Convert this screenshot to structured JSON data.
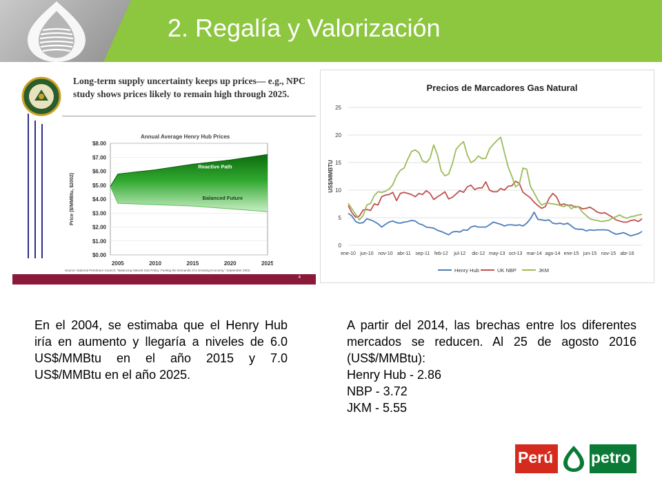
{
  "slide": {
    "title": "2. Regalía y Valorización"
  },
  "left_figure": {
    "headline": "Long-term supply uncertainty keeps up prices— e.g., NPC study shows prices likely to remain high through 2025.",
    "chart_title": "Annual Average Henry Hub Prices",
    "source": "Source: National Petroleum Council, \"Balancing Natural Gas Policy: Fueling the Demands of a Growing Economy,\" September 2003.",
    "page_number": "4"
  },
  "text": {
    "left_paragraph": "En el 2004, se estimaba que el Henry Hub iría en aumento y llegaría a niveles de 6.0 US$/MMBtu en el año 2015 y 7.0 US$/MMBtu en el año 2025.",
    "right_paragraph": "A partir del 2014, las brechas entre los diferentes mercados se reducen. Al 25 de agosto 2016 (US$/MMBtu):",
    "right_lines": [
      "Henry Hub - 2.86",
      "NBP - 3.72",
      "JKM - 5.55"
    ]
  },
  "logo": {
    "word1": "Perú",
    "word2": "petro"
  },
  "chart_data": [
    {
      "type": "area",
      "title": "Annual Average Henry Hub Prices",
      "ylabel": "Price ($/MMBtu, $2002)",
      "xlabel": "",
      "x": [
        2004,
        2005,
        2010,
        2015,
        2020,
        2025
      ],
      "x_ticks": [
        "2005",
        "2010",
        "2015",
        "2020",
        "2025"
      ],
      "y_ticks": [
        "$0.00",
        "$1.00",
        "$2.00",
        "$3.00",
        "$4.00",
        "$5.00",
        "$6.00",
        "$7.00",
        "$8.00"
      ],
      "ylim": [
        0,
        8
      ],
      "series": [
        {
          "name": "Reactive Path",
          "values": [
            4.9,
            5.8,
            6.1,
            6.5,
            6.8,
            7.2
          ]
        },
        {
          "name": "Balanced Future",
          "values": [
            4.9,
            3.7,
            3.6,
            3.5,
            3.3,
            3.1
          ]
        }
      ],
      "colors": {
        "fill": "#2fa82f",
        "fill_light": "#c9eec4"
      },
      "grid": true
    },
    {
      "type": "line",
      "title": "Precios de Marcadores Gas Natural",
      "ylabel": "US$/MMBTU",
      "xlabel": "",
      "ylim": [
        0,
        25
      ],
      "y_ticks": [
        "0",
        "5",
        "10",
        "15",
        "20",
        "25"
      ],
      "x_tick_labels": [
        "ene-10",
        "jun-10",
        "nov-10",
        "abr-11",
        "sep-11",
        "feb-12",
        "jul-12",
        "dic-12",
        "may-13",
        "oct-13",
        "mar-14",
        "ago-14",
        "ene-15",
        "jun-15",
        "nov-15",
        "abr-16"
      ],
      "x_count": 80,
      "legend_position": "bottom",
      "grid": true,
      "series": [
        {
          "name": "Henry Hub",
          "color": "#4a7ebb",
          "values": [
            5.8,
            5.3,
            4.3,
            4.0,
            4.1,
            4.8,
            4.6,
            4.3,
            3.9,
            3.3,
            3.8,
            4.2,
            4.4,
            4.1,
            4.0,
            4.2,
            4.3,
            4.5,
            4.4,
            3.9,
            3.7,
            3.3,
            3.2,
            3.1,
            2.7,
            2.5,
            2.2,
            1.9,
            2.4,
            2.5,
            2.4,
            2.8,
            2.7,
            3.3,
            3.5,
            3.3,
            3.3,
            3.3,
            3.7,
            4.2,
            4.0,
            3.8,
            3.5,
            3.7,
            3.7,
            3.6,
            3.7,
            3.5,
            4.0,
            4.8,
            6.0,
            4.7,
            4.6,
            4.5,
            4.6,
            4.0,
            3.9,
            4.0,
            3.8,
            4.0,
            3.5,
            3.0,
            2.9,
            2.9,
            2.6,
            2.8,
            2.7,
            2.8,
            2.8,
            2.8,
            2.7,
            2.3,
            2.0,
            2.1,
            2.3,
            2.0,
            1.7,
            1.9,
            2.1,
            2.5
          ]
        },
        {
          "name": "UK NBP",
          "color": "#c0504d",
          "values": [
            7.2,
            5.9,
            5.1,
            5.3,
            6.4,
            6.5,
            6.3,
            7.5,
            7.3,
            8.8,
            9.1,
            9.2,
            9.6,
            8.1,
            9.4,
            9.6,
            9.4,
            9.2,
            8.8,
            9.4,
            9.2,
            9.9,
            9.4,
            8.3,
            8.8,
            9.2,
            9.7,
            8.4,
            8.7,
            9.3,
            9.9,
            9.6,
            10.6,
            10.9,
            10.1,
            10.4,
            10.4,
            11.5,
            10.0,
            9.7,
            9.7,
            10.3,
            10.0,
            10.7,
            10.8,
            11.6,
            11.2,
            9.6,
            9.1,
            8.6,
            7.8,
            7.2,
            6.7,
            7.0,
            8.5,
            9.4,
            8.8,
            7.3,
            7.5,
            7.2,
            7.3,
            6.9,
            7.0,
            6.6,
            6.7,
            6.9,
            6.5,
            6.0,
            5.8,
            5.9,
            5.5,
            5.1,
            4.6,
            4.4,
            4.2,
            4.2,
            4.5,
            4.6,
            4.3,
            4.8
          ]
        },
        {
          "name": "JKM",
          "color": "#9bbb59",
          "values": [
            7.6,
            6.6,
            5.6,
            4.6,
            5.4,
            7.3,
            7.6,
            9.0,
            9.7,
            9.6,
            9.8,
            10.2,
            11.0,
            12.6,
            13.6,
            14.0,
            15.6,
            17.0,
            17.3,
            16.8,
            15.3,
            15.0,
            15.8,
            18.2,
            16.4,
            13.5,
            12.6,
            12.9,
            14.8,
            17.4,
            18.2,
            18.8,
            16.4,
            15.0,
            15.4,
            16.2,
            15.7,
            15.8,
            17.5,
            18.3,
            19.0,
            19.6,
            16.8,
            14.2,
            12.5,
            10.6,
            11.1,
            14.0,
            13.8,
            10.7,
            9.5,
            8.2,
            7.3,
            7.6,
            7.6,
            7.5,
            7.4,
            7.2,
            7.0,
            7.4,
            6.6,
            7.1,
            6.9,
            6.0,
            5.4,
            4.8,
            4.6,
            4.5,
            4.3,
            4.4,
            4.5,
            4.9,
            5.2,
            5.5,
            5.1,
            4.9,
            5.2,
            5.3,
            5.5,
            5.6
          ]
        }
      ]
    }
  ]
}
